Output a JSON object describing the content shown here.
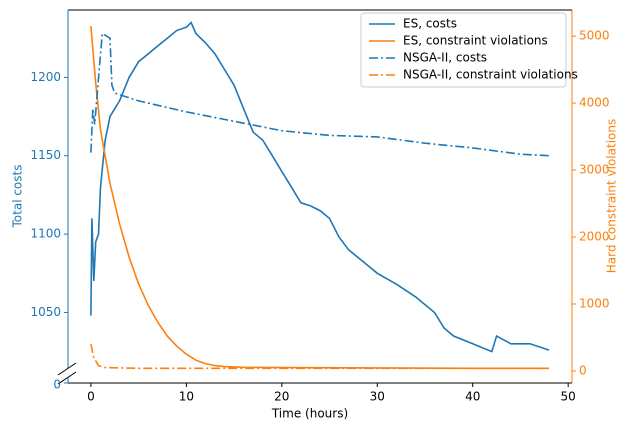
{
  "chart_data": {
    "type": "line",
    "xlabel": "Time (hours)",
    "ylabel": "Total costs",
    "y2label": "Hard constraint violations",
    "xlim": [
      -2.4,
      50.4
    ],
    "xticks": [
      0,
      10,
      20,
      30,
      40,
      50
    ],
    "ylim": [
      1012,
      1243
    ],
    "yticks": [
      1050,
      1100,
      1150,
      1200
    ],
    "y_break_ticks": [
      0
    ],
    "y2lim": [
      -180,
      5390
    ],
    "y2ticks": [
      0,
      1000,
      2000,
      3000,
      4000,
      5000
    ],
    "legend": "upper right",
    "series": [
      {
        "name": "ES, costs",
        "color": "#1f77b4",
        "style": "solid",
        "x": [
          0,
          0.1,
          0.3,
          0.5,
          0.8,
          1,
          1.5,
          2,
          3,
          4,
          5,
          6,
          7,
          8,
          9,
          10,
          10.5,
          11,
          12,
          13,
          14,
          15,
          16,
          17,
          18,
          19,
          20,
          21,
          22,
          23,
          24,
          25,
          26,
          27,
          28,
          29,
          30,
          32,
          34,
          36,
          37,
          38,
          40,
          42,
          42.5,
          44,
          46,
          48
        ],
        "values": [
          1048,
          1110,
          1070,
          1095,
          1100,
          1130,
          1160,
          1175,
          1185,
          1200,
          1210,
          1215,
          1220,
          1225,
          1230,
          1232,
          1235,
          1228,
          1222,
          1215,
          1205,
          1195,
          1180,
          1165,
          1160,
          1150,
          1140,
          1130,
          1120,
          1118,
          1115,
          1110,
          1098,
          1090,
          1085,
          1080,
          1075,
          1068,
          1060,
          1050,
          1040,
          1035,
          1030,
          1025,
          1035,
          1030,
          1030,
          1026
        ]
      },
      {
        "name": "ES, constraint violations",
        "color": "#ff7f0e",
        "style": "solid",
        "axis": "y2",
        "x": [
          0,
          0.5,
          1,
          2,
          3,
          4,
          5,
          6,
          7,
          8,
          9,
          10,
          11,
          12,
          13,
          14,
          16,
          20,
          30,
          40,
          48
        ],
        "values": [
          5150,
          4300,
          3600,
          2800,
          2200,
          1700,
          1300,
          980,
          730,
          520,
          370,
          250,
          160,
          110,
          80,
          65,
          55,
          50,
          45,
          40,
          40
        ]
      },
      {
        "name": "NSGA-II, costs",
        "color": "#1f77b4",
        "style": "dashdot",
        "x": [
          0,
          0.2,
          0.4,
          1,
          1.2,
          2,
          2.2,
          2.5,
          5,
          10,
          15,
          20,
          25,
          30,
          35,
          40,
          45,
          48
        ],
        "values": [
          1152,
          1180,
          1170,
          1215,
          1228,
          1225,
          1195,
          1190,
          1185,
          1178,
          1172,
          1166,
          1163,
          1162,
          1158,
          1155,
          1151,
          1150
        ]
      },
      {
        "name": "NSGA-II, constraint violations",
        "color": "#ff7f0e",
        "style": "dashdot",
        "axis": "y2",
        "x": [
          0,
          0.3,
          0.8,
          1.5,
          5,
          48
        ],
        "values": [
          400,
          200,
          80,
          50,
          40,
          40
        ]
      }
    ]
  }
}
